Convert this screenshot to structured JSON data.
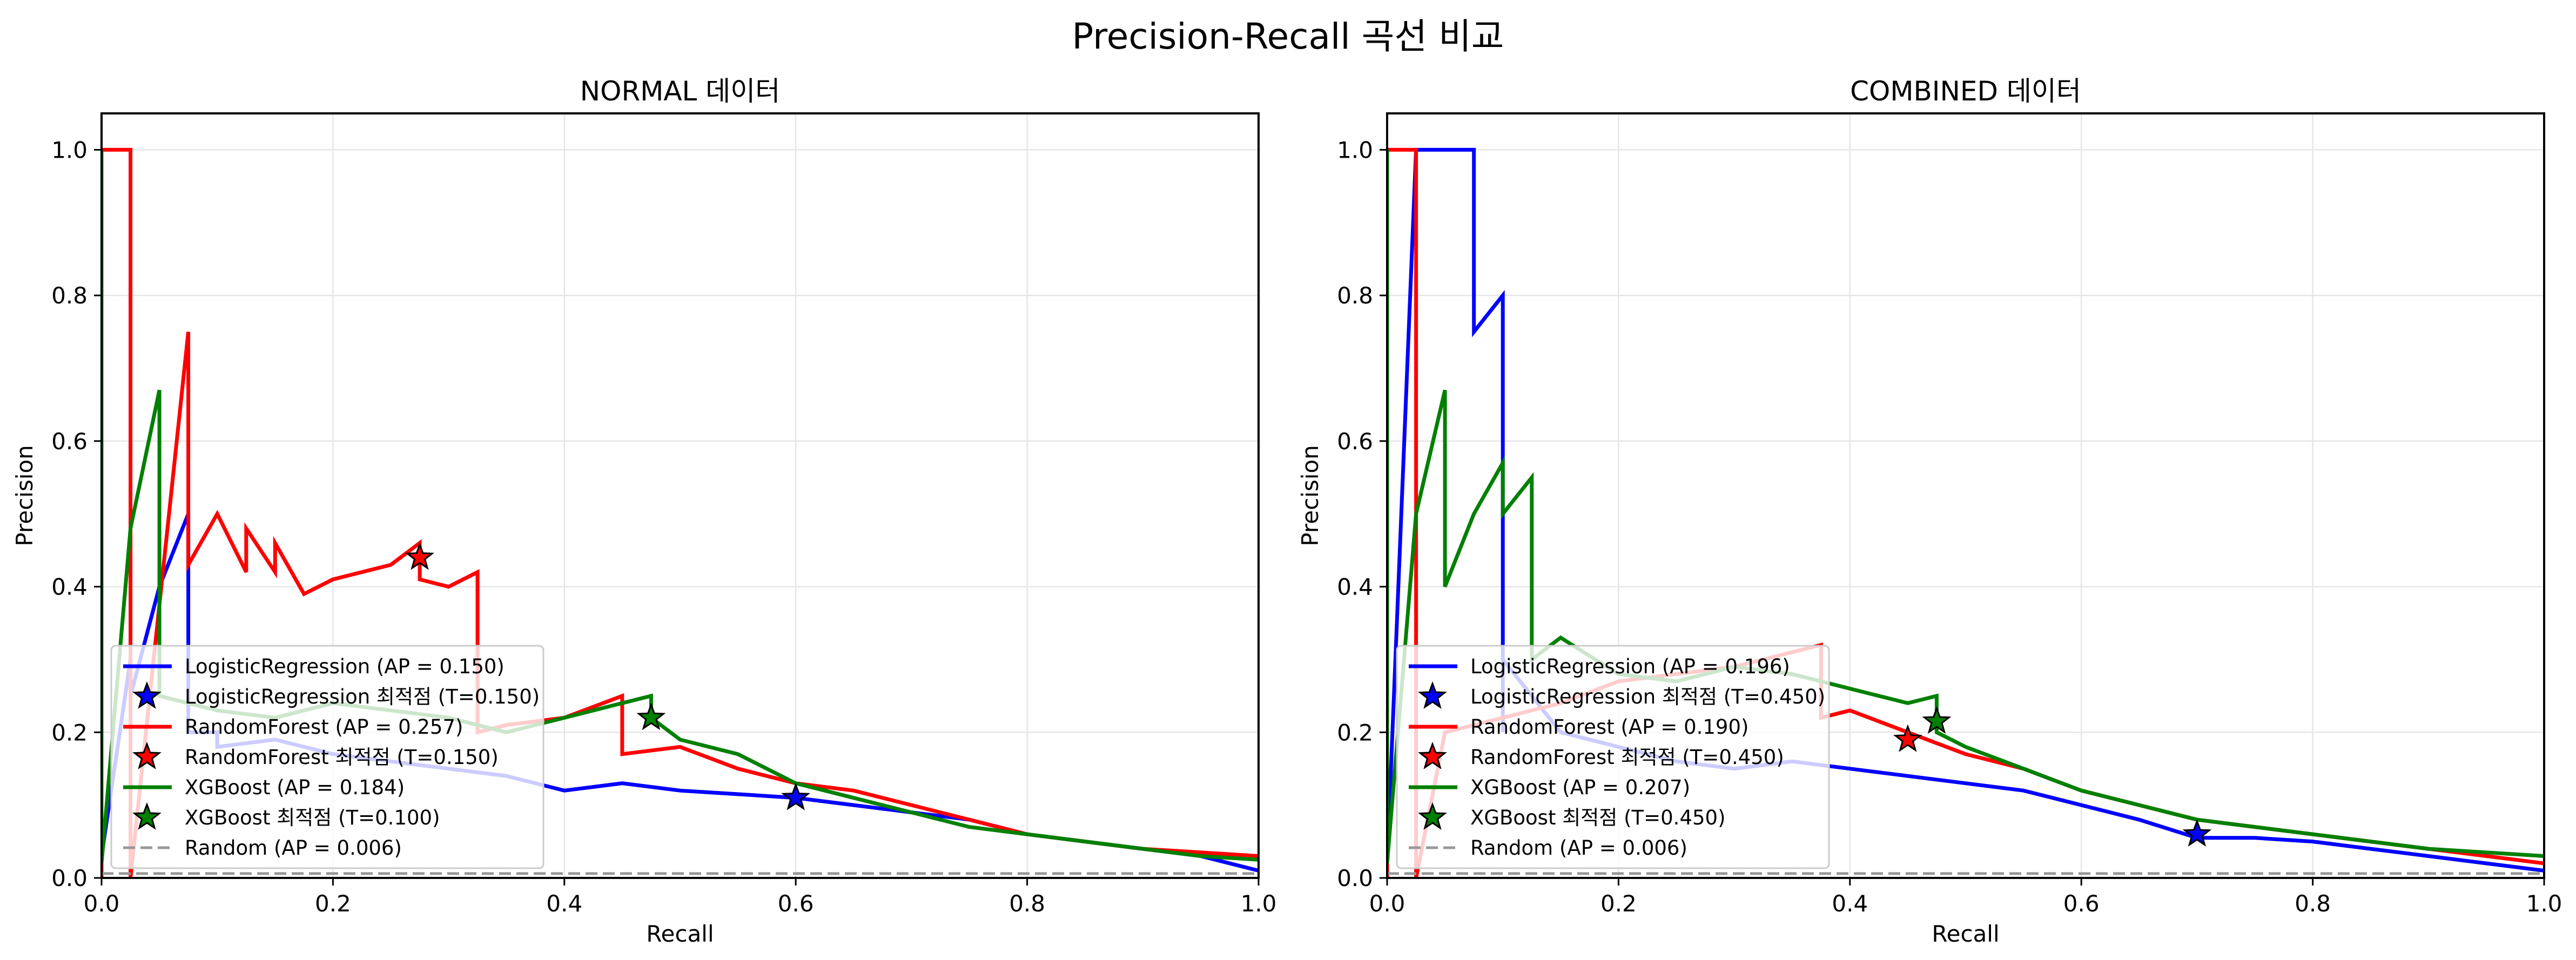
{
  "figure": {
    "suptitle": "Precision-Recall 곡선 비교"
  },
  "colors": {
    "LogisticRegression": "#0000ff",
    "RandomForest": "#ff0000",
    "XGBoost": "#008000",
    "Random": "#999999"
  },
  "chart_data": [
    {
      "type": "line",
      "title": "NORMAL 데이터",
      "xlabel": "Recall",
      "ylabel": "Precision",
      "xlim": [
        0,
        1.0
      ],
      "ylim": [
        0,
        1.05
      ],
      "xticks": [
        "0.0",
        "0.2",
        "0.4",
        "0.6",
        "0.8",
        "1.0"
      ],
      "yticks": [
        "0.0",
        "0.2",
        "0.4",
        "0.6",
        "0.8",
        "1.0"
      ],
      "grid": true,
      "legend_position": "lower-left",
      "series": [
        {
          "name": "LogisticRegression (AP = 0.150)",
          "color": "#0000ff",
          "x": [
            0.0,
            0.0,
            0.025,
            0.025,
            0.05,
            0.075,
            0.075,
            0.1,
            0.1,
            0.15,
            0.2,
            0.25,
            0.3,
            0.35,
            0.4,
            0.45,
            0.5,
            0.55,
            0.6,
            0.65,
            0.7,
            0.75,
            0.8,
            0.85,
            0.9,
            0.95,
            1.0
          ],
          "y": [
            1.0,
            0.03,
            0.3,
            0.25,
            0.4,
            0.5,
            0.2,
            0.2,
            0.18,
            0.19,
            0.17,
            0.16,
            0.15,
            0.14,
            0.12,
            0.13,
            0.12,
            0.115,
            0.11,
            0.1,
            0.09,
            0.08,
            0.06,
            0.05,
            0.04,
            0.03,
            0.01
          ]
        },
        {
          "name": "RandomForest (AP = 0.257)",
          "color": "#ff0000",
          "x": [
            0.0,
            0.0,
            0.025,
            0.025,
            0.075,
            0.075,
            0.1,
            0.125,
            0.125,
            0.15,
            0.15,
            0.175,
            0.2,
            0.25,
            0.275,
            0.275,
            0.3,
            0.325,
            0.325,
            0.35,
            0.4,
            0.45,
            0.45,
            0.5,
            0.55,
            0.6,
            0.65,
            0.7,
            0.75,
            0.8,
            0.85,
            0.9,
            0.95,
            1.0
          ],
          "y": [
            0.0,
            1.0,
            1.0,
            0.0,
            0.75,
            0.43,
            0.5,
            0.42,
            0.48,
            0.42,
            0.46,
            0.39,
            0.41,
            0.43,
            0.46,
            0.41,
            0.4,
            0.42,
            0.2,
            0.21,
            0.22,
            0.25,
            0.17,
            0.18,
            0.15,
            0.13,
            0.12,
            0.1,
            0.08,
            0.06,
            0.05,
            0.04,
            0.035,
            0.03
          ]
        },
        {
          "name": "XGBoost (AP = 0.184)",
          "color": "#008000",
          "x": [
            0.0,
            0.0,
            0.025,
            0.05,
            0.05,
            0.1,
            0.15,
            0.2,
            0.25,
            0.3,
            0.35,
            0.4,
            0.45,
            0.475,
            0.475,
            0.5,
            0.55,
            0.6,
            0.65,
            0.7,
            0.75,
            0.8,
            0.85,
            0.9,
            0.95,
            1.0
          ],
          "y": [
            1.0,
            0.02,
            0.48,
            0.67,
            0.25,
            0.23,
            0.22,
            0.24,
            0.23,
            0.22,
            0.2,
            0.22,
            0.24,
            0.25,
            0.22,
            0.19,
            0.17,
            0.13,
            0.11,
            0.09,
            0.07,
            0.06,
            0.05,
            0.04,
            0.03,
            0.025
          ]
        },
        {
          "name": "Random (AP = 0.006)",
          "color": "#999999",
          "dashed": true,
          "x": [
            0.0,
            1.0
          ],
          "y": [
            0.006,
            0.006
          ]
        }
      ],
      "optimal_points": [
        {
          "name": "LogisticRegression 최적점 (T=0.150)",
          "color": "#0000ff",
          "x": 0.6,
          "y": 0.11
        },
        {
          "name": "RandomForest 최적점 (T=0.150)",
          "color": "#ff0000",
          "x": 0.275,
          "y": 0.44
        },
        {
          "name": "XGBoost 최적점 (T=0.100)",
          "color": "#008000",
          "x": 0.475,
          "y": 0.22
        }
      ],
      "legend": [
        {
          "label": "LogisticRegression (AP = 0.150)",
          "kind": "line",
          "color": "#0000ff"
        },
        {
          "label": "LogisticRegression 최적점 (T=0.150)",
          "kind": "star",
          "color": "#0000ff"
        },
        {
          "label": "RandomForest (AP = 0.257)",
          "kind": "line",
          "color": "#ff0000"
        },
        {
          "label": "RandomForest 최적점 (T=0.150)",
          "kind": "star",
          "color": "#ff0000"
        },
        {
          "label": "XGBoost (AP = 0.184)",
          "kind": "line",
          "color": "#008000"
        },
        {
          "label": "XGBoost 최적점 (T=0.100)",
          "kind": "star",
          "color": "#008000"
        },
        {
          "label": "Random (AP = 0.006)",
          "kind": "dashed",
          "color": "#999999"
        }
      ]
    },
    {
      "type": "line",
      "title": "COMBINED 데이터",
      "xlabel": "Recall",
      "ylabel": "Precision",
      "xlim": [
        0,
        1.0
      ],
      "ylim": [
        0,
        1.05
      ],
      "xticks": [
        "0.0",
        "0.2",
        "0.4",
        "0.6",
        "0.8",
        "1.0"
      ],
      "yticks": [
        "0.0",
        "0.2",
        "0.4",
        "0.6",
        "0.8",
        "1.0"
      ],
      "grid": true,
      "legend_position": "lower-left",
      "series": [
        {
          "name": "LogisticRegression (AP = 0.196)",
          "color": "#0000ff",
          "x": [
            0.0,
            0.0,
            0.025,
            0.025,
            0.075,
            0.075,
            0.1,
            0.1,
            0.1,
            0.15,
            0.2,
            0.25,
            0.3,
            0.35,
            0.4,
            0.45,
            0.5,
            0.55,
            0.6,
            0.65,
            0.7,
            0.75,
            0.8,
            0.85,
            0.9,
            0.95,
            1.0
          ],
          "y": [
            1.0,
            0.02,
            1.0,
            1.0,
            1.0,
            0.75,
            0.8,
            0.2,
            0.3,
            0.2,
            0.18,
            0.16,
            0.15,
            0.16,
            0.15,
            0.14,
            0.13,
            0.12,
            0.1,
            0.08,
            0.055,
            0.055,
            0.05,
            0.04,
            0.03,
            0.02,
            0.01
          ]
        },
        {
          "name": "RandomForest (AP = 0.190)",
          "color": "#ff0000",
          "x": [
            0.0,
            0.0,
            0.025,
            0.025,
            0.05,
            0.1,
            0.15,
            0.2,
            0.25,
            0.3,
            0.35,
            0.375,
            0.375,
            0.4,
            0.45,
            0.5,
            0.55,
            0.6,
            0.65,
            0.7,
            0.75,
            0.8,
            0.85,
            0.9,
            0.95,
            1.0
          ],
          "y": [
            0.0,
            1.0,
            1.0,
            0.0,
            0.2,
            0.22,
            0.24,
            0.27,
            0.28,
            0.29,
            0.31,
            0.32,
            0.22,
            0.23,
            0.2,
            0.17,
            0.15,
            0.12,
            0.1,
            0.08,
            0.07,
            0.06,
            0.05,
            0.04,
            0.03,
            0.02
          ]
        },
        {
          "name": "XGBoost (AP = 0.207)",
          "color": "#008000",
          "x": [
            0.0,
            0.0,
            0.025,
            0.05,
            0.05,
            0.075,
            0.1,
            0.1,
            0.125,
            0.125,
            0.15,
            0.2,
            0.25,
            0.3,
            0.35,
            0.4,
            0.45,
            0.475,
            0.475,
            0.5,
            0.55,
            0.6,
            0.65,
            0.7,
            0.75,
            0.8,
            0.85,
            0.9,
            0.95,
            1.0
          ],
          "y": [
            1.0,
            0.02,
            0.5,
            0.67,
            0.4,
            0.5,
            0.57,
            0.5,
            0.55,
            0.3,
            0.33,
            0.28,
            0.27,
            0.29,
            0.28,
            0.26,
            0.24,
            0.25,
            0.2,
            0.18,
            0.15,
            0.12,
            0.1,
            0.08,
            0.07,
            0.06,
            0.05,
            0.04,
            0.035,
            0.03
          ]
        },
        {
          "name": "Random (AP = 0.006)",
          "color": "#999999",
          "dashed": true,
          "x": [
            0.0,
            1.0
          ],
          "y": [
            0.006,
            0.006
          ]
        }
      ],
      "optimal_points": [
        {
          "name": "LogisticRegression 최적점 (T=0.450)",
          "color": "#0000ff",
          "x": 0.7,
          "y": 0.06
        },
        {
          "name": "RandomForest 최적점 (T=0.450)",
          "color": "#ff0000",
          "x": 0.45,
          "y": 0.19
        },
        {
          "name": "XGBoost 최적점 (T=0.450)",
          "color": "#008000",
          "x": 0.475,
          "y": 0.215
        }
      ],
      "legend": [
        {
          "label": "LogisticRegression (AP = 0.196)",
          "kind": "line",
          "color": "#0000ff"
        },
        {
          "label": "LogisticRegression 최적점 (T=0.450)",
          "kind": "star",
          "color": "#0000ff"
        },
        {
          "label": "RandomForest (AP = 0.190)",
          "kind": "line",
          "color": "#ff0000"
        },
        {
          "label": "RandomForest 최적점 (T=0.450)",
          "kind": "star",
          "color": "#ff0000"
        },
        {
          "label": "XGBoost (AP = 0.207)",
          "kind": "line",
          "color": "#008000"
        },
        {
          "label": "XGBoost 최적점 (T=0.450)",
          "kind": "star",
          "color": "#008000"
        },
        {
          "label": "Random (AP = 0.006)",
          "kind": "dashed",
          "color": "#999999"
        }
      ]
    }
  ]
}
